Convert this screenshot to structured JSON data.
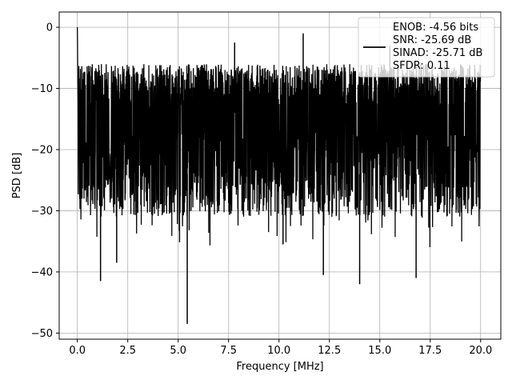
{
  "chart_data": {
    "type": "line",
    "title": "",
    "xlabel": "Frequency [MHz]",
    "ylabel": "PSD [dB]",
    "xlim": [
      -0.9,
      21.0
    ],
    "ylim": [
      -51.0,
      2.5
    ],
    "xticks": [
      0.0,
      2.5,
      5.0,
      7.5,
      10.0,
      12.5,
      15.0,
      17.5,
      20.0
    ],
    "xtick_labels": [
      "0.0",
      "2.5",
      "5.0",
      "7.5",
      "10.0",
      "12.5",
      "15.0",
      "17.5",
      "20.0"
    ],
    "yticks": [
      0,
      -10,
      -20,
      -30,
      -40,
      -50
    ],
    "ytick_labels": [
      "0",
      "−10",
      "−20",
      "−30",
      "−40",
      "−50"
    ],
    "grid": true,
    "legend": {
      "placement": "top-right",
      "entries": [
        "ENOB: -4.56 bits",
        "SNR: -25.69 dB",
        "SINAD: -25.71 dB",
        "SFDR: 0.11"
      ]
    },
    "series": [
      {
        "color": "#000000",
        "style": "noise-like spectrum, envelope approx -33 dB to -5 dB across 0–20 MHz",
        "x_range": [
          0.0,
          20.0
        ],
        "peak": {
          "x": 0.0,
          "y": 0.0
        },
        "upper_envelope_typical": -6,
        "lower_envelope_typical": -31,
        "notable_deep_dips": [
          {
            "x": 1.15,
            "y": -41.5
          },
          {
            "x": 1.95,
            "y": -38.5
          },
          {
            "x": 5.45,
            "y": -48.5
          },
          {
            "x": 10.2,
            "y": -35.5
          },
          {
            "x": 12.2,
            "y": -40.5
          },
          {
            "x": 14.0,
            "y": -42.0
          },
          {
            "x": 16.8,
            "y": -41.0
          }
        ],
        "notable_high_peaks": [
          {
            "x": 11.2,
            "y": -1.0
          },
          {
            "x": 0.3,
            "y": -7.5
          },
          {
            "x": 7.8,
            "y": -2.5
          },
          {
            "x": 15.5,
            "y": -3.0
          }
        ]
      }
    ]
  }
}
